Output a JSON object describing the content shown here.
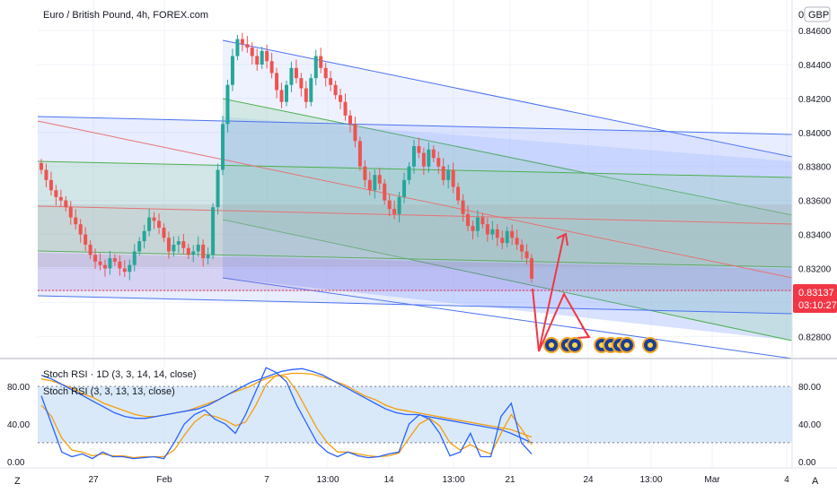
{
  "header": {
    "title": "Euro / British Pound, 4h, FOREX.com",
    "currency_button": "GBP",
    "currency_prefix": "0."
  },
  "price_badge": {
    "price": "0.83137",
    "countdown": "03:10:27",
    "color": "#f23645"
  },
  "indicators": {
    "stoch_1d_label": "Stoch RSI · 1D (3, 3, 14, 14, close)",
    "stoch_label": "Stoch RSI (3, 3, 13, 13, close)",
    "band_color": "#cfe4f7",
    "k_color": "#2962ff",
    "d_color": "#f59e0b"
  },
  "footer": {
    "left_button": "Z",
    "right_button": "A"
  },
  "chart_data": [
    {
      "type": "candlestick",
      "timeframe": "4h",
      "x_ticks": [
        "27",
        "Feb",
        "7",
        "13:00",
        "14",
        "13:00",
        "21",
        "24",
        "13:00",
        "Mar",
        "4"
      ],
      "y_ticks": [
        "0.84600",
        "0.84400",
        "0.84200",
        "0.84000",
        "0.83800",
        "0.83600",
        "0.83400",
        "0.83200",
        "0.83000",
        "0.82800"
      ],
      "ylim": [
        0.8268,
        0.8478
      ],
      "last_price": 0.83137,
      "close_series": [
        0.8378,
        0.8372,
        0.8366,
        0.8362,
        0.836,
        0.8356,
        0.835,
        0.8346,
        0.834,
        0.8334,
        0.8328,
        0.8324,
        0.8322,
        0.832,
        0.8326,
        0.8324,
        0.832,
        0.8318,
        0.8322,
        0.833,
        0.8336,
        0.8342,
        0.835,
        0.8348,
        0.8344,
        0.8338,
        0.833,
        0.8334,
        0.8336,
        0.8332,
        0.8328,
        0.833,
        0.8334,
        0.8326,
        0.8328,
        0.8356,
        0.8378,
        0.8405,
        0.8428,
        0.8445,
        0.8455,
        0.8452,
        0.845,
        0.8445,
        0.844,
        0.8448,
        0.8442,
        0.8435,
        0.8425,
        0.8418,
        0.8428,
        0.8438,
        0.8432,
        0.8426,
        0.8418,
        0.8432,
        0.8445,
        0.8438,
        0.8432,
        0.8428,
        0.8422,
        0.8418,
        0.841,
        0.8405,
        0.8395,
        0.838,
        0.8372,
        0.8366,
        0.8375,
        0.837,
        0.836,
        0.8355,
        0.8352,
        0.8362,
        0.8372,
        0.838,
        0.8392,
        0.8388,
        0.838,
        0.839,
        0.8385,
        0.838,
        0.8372,
        0.8378,
        0.8368,
        0.836,
        0.8352,
        0.8345,
        0.8342,
        0.835,
        0.8346,
        0.834,
        0.8343,
        0.8338,
        0.8335,
        0.8342,
        0.8338,
        0.8334,
        0.833,
        0.8326,
        0.8314
      ],
      "series": [
        {
          "name": "Stoch RSI · 1D (3, 3, 14, 14, close)"
        },
        {
          "name": "Stoch RSI (3, 3, 13, 13, close)"
        }
      ]
    },
    {
      "type": "line",
      "name": "Stoch RSI",
      "y_ticks": [
        "80.00",
        "40.00",
        "0.00"
      ],
      "ylim": [
        -5,
        105
      ],
      "bands": [
        20,
        80
      ],
      "k_1d": [
        92,
        88,
        82,
        76,
        70,
        64,
        58,
        52,
        48,
        46,
        46,
        48,
        50,
        52,
        54,
        56,
        60,
        66,
        72,
        78,
        84,
        88,
        92,
        96,
        98,
        99,
        96,
        92,
        86,
        80,
        74,
        68,
        62,
        56,
        52,
        50,
        50,
        48,
        46,
        44,
        42,
        40,
        38,
        36,
        34,
        30,
        25,
        20
      ],
      "d_1d": [
        88,
        86,
        82,
        78,
        72,
        68,
        62,
        58,
        54,
        50,
        48,
        48,
        50,
        52,
        54,
        58,
        62,
        66,
        72,
        76,
        80,
        86,
        90,
        92,
        94,
        94,
        93,
        90,
        86,
        82,
        76,
        70,
        66,
        60,
        56,
        54,
        52,
        50,
        48,
        46,
        44,
        42,
        40,
        38,
        36,
        34,
        30,
        26
      ],
      "k_4h": [
        70,
        40,
        10,
        5,
        8,
        3,
        10,
        5,
        5,
        3,
        4,
        5,
        3,
        20,
        40,
        50,
        55,
        45,
        40,
        30,
        50,
        75,
        100,
        95,
        85,
        60,
        40,
        20,
        10,
        5,
        10,
        6,
        4,
        5,
        8,
        10,
        40,
        50,
        45,
        30,
        6,
        10,
        30,
        5,
        5,
        48,
        62,
        20,
        8
      ],
      "d_4h": [
        60,
        48,
        25,
        12,
        10,
        6,
        8,
        6,
        6,
        4,
        5,
        5,
        5,
        12,
        28,
        42,
        50,
        48,
        44,
        38,
        42,
        60,
        82,
        92,
        90,
        75,
        55,
        35,
        20,
        10,
        10,
        8,
        6,
        5,
        6,
        9,
        25,
        40,
        46,
        38,
        20,
        12,
        18,
        12,
        8,
        30,
        50,
        35,
        18
      ]
    }
  ]
}
